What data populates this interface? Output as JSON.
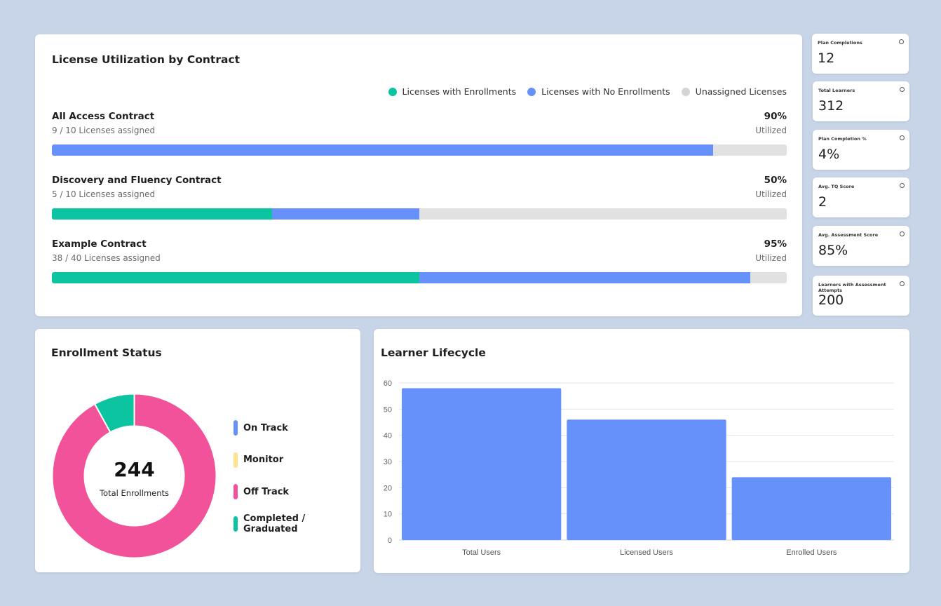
{
  "license": {
    "title": "License Utilization by Contract",
    "legend": [
      {
        "label": "Licenses with Enrollments",
        "color": "#0cc4a0"
      },
      {
        "label": "Licenses with No Enrollments",
        "color": "#6690fa"
      },
      {
        "label": "Unassigned Licenses",
        "color": "#d4d4d4"
      }
    ],
    "contracts": [
      {
        "name": "All Access Contract",
        "assigned": "9 / 10 Licenses assigned",
        "percent": "90%",
        "utilized": "Utilized",
        "enrolled_fraction": 0.0,
        "no_enroll_fraction": 0.9
      },
      {
        "name": "Discovery and Fluency Contract",
        "assigned": "5 / 10 Licenses assigned",
        "percent": "50%",
        "utilized": "Utilized",
        "enrolled_fraction": 0.3,
        "no_enroll_fraction": 0.2
      },
      {
        "name": "Example Contract",
        "assigned": "38 / 40 Licenses assigned",
        "percent": "95%",
        "utilized": "Utilized",
        "enrolled_fraction": 0.5,
        "no_enroll_fraction": 0.45
      }
    ]
  },
  "kpis": [
    {
      "label": "Plan Completions",
      "value": "12"
    },
    {
      "label": "Total Learners",
      "value": "312"
    },
    {
      "label": "Plan Completion %",
      "value": "4%"
    },
    {
      "label": "Avg. TQ Score",
      "value": "2"
    },
    {
      "label": "Avg. Assessment Score",
      "value": "85%"
    },
    {
      "label": "Learners with Assessment Attempts",
      "value": "200"
    }
  ],
  "enrollment": {
    "title": "Enrollment Status",
    "total": "244",
    "total_label": "Total Enrollments",
    "statuses": [
      {
        "label": "On Track",
        "color": "#6690fa",
        "share": 0.0
      },
      {
        "label": "Monitor",
        "color": "#fde38a",
        "share": 0.0
      },
      {
        "label": "Off Track",
        "color": "#f15299",
        "share": 0.92
      },
      {
        "label": "Completed / Graduated",
        "color": "#0cc4a0",
        "share": 0.08
      }
    ]
  },
  "lifecycle": {
    "title": "Learner Lifecycle"
  },
  "chart_data": {
    "type": "bar",
    "title": "Learner Lifecycle",
    "categories": [
      "Total Users",
      "Licensed Users",
      "Enrolled Users"
    ],
    "values": [
      58,
      46,
      24
    ],
    "yticks": [
      "0",
      "10",
      "20",
      "30",
      "40",
      "50",
      "60"
    ],
    "ylim": [
      0,
      60
    ],
    "color": "#6690fa",
    "grid": true
  }
}
